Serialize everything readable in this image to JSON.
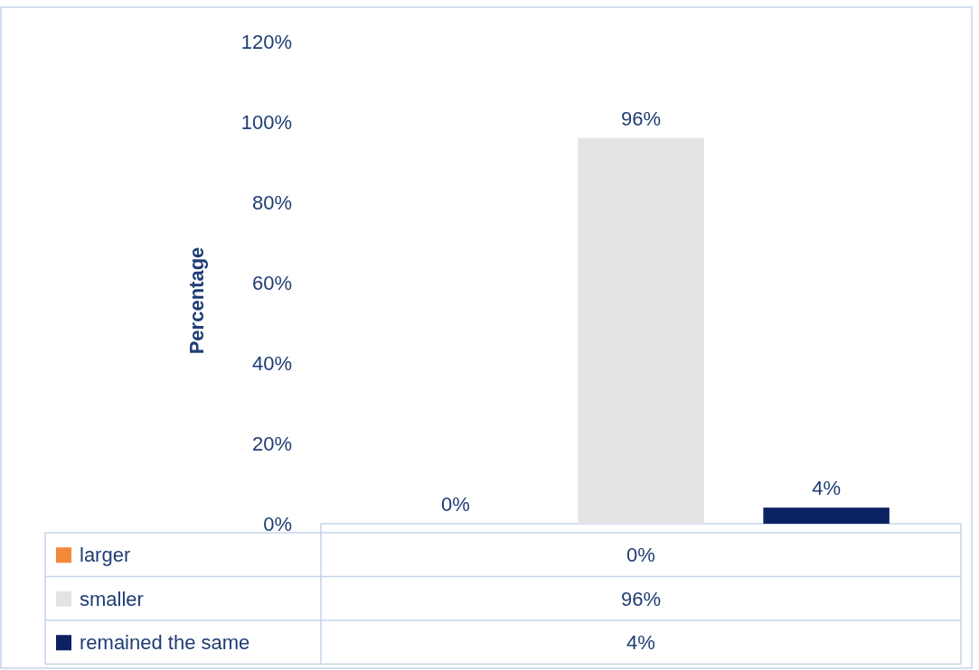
{
  "chart_data": {
    "type": "bar",
    "ylabel": "Percentage",
    "categories": [
      null
    ],
    "series": [
      {
        "name": "larger",
        "color": "#f4883a",
        "values": [
          0
        ],
        "value_labels": [
          "0%"
        ]
      },
      {
        "name": "smaller",
        "color": "#e3e3e3",
        "values": [
          96
        ],
        "value_labels": [
          "96%"
        ]
      },
      {
        "name": "remained the same",
        "color": "#0b2262",
        "values": [
          4
        ],
        "value_labels": [
          "4%"
        ]
      }
    ],
    "ylim": [
      0,
      120
    ],
    "yticks": [
      {
        "value": 0,
        "label": "0%"
      },
      {
        "value": 20,
        "label": "20%"
      },
      {
        "value": 40,
        "label": "40%"
      },
      {
        "value": 60,
        "label": "60%"
      },
      {
        "value": 80,
        "label": "80%"
      },
      {
        "value": 100,
        "label": "100%"
      },
      {
        "value": 120,
        "label": "120%"
      }
    ],
    "legend": "bottom",
    "grid": false
  }
}
